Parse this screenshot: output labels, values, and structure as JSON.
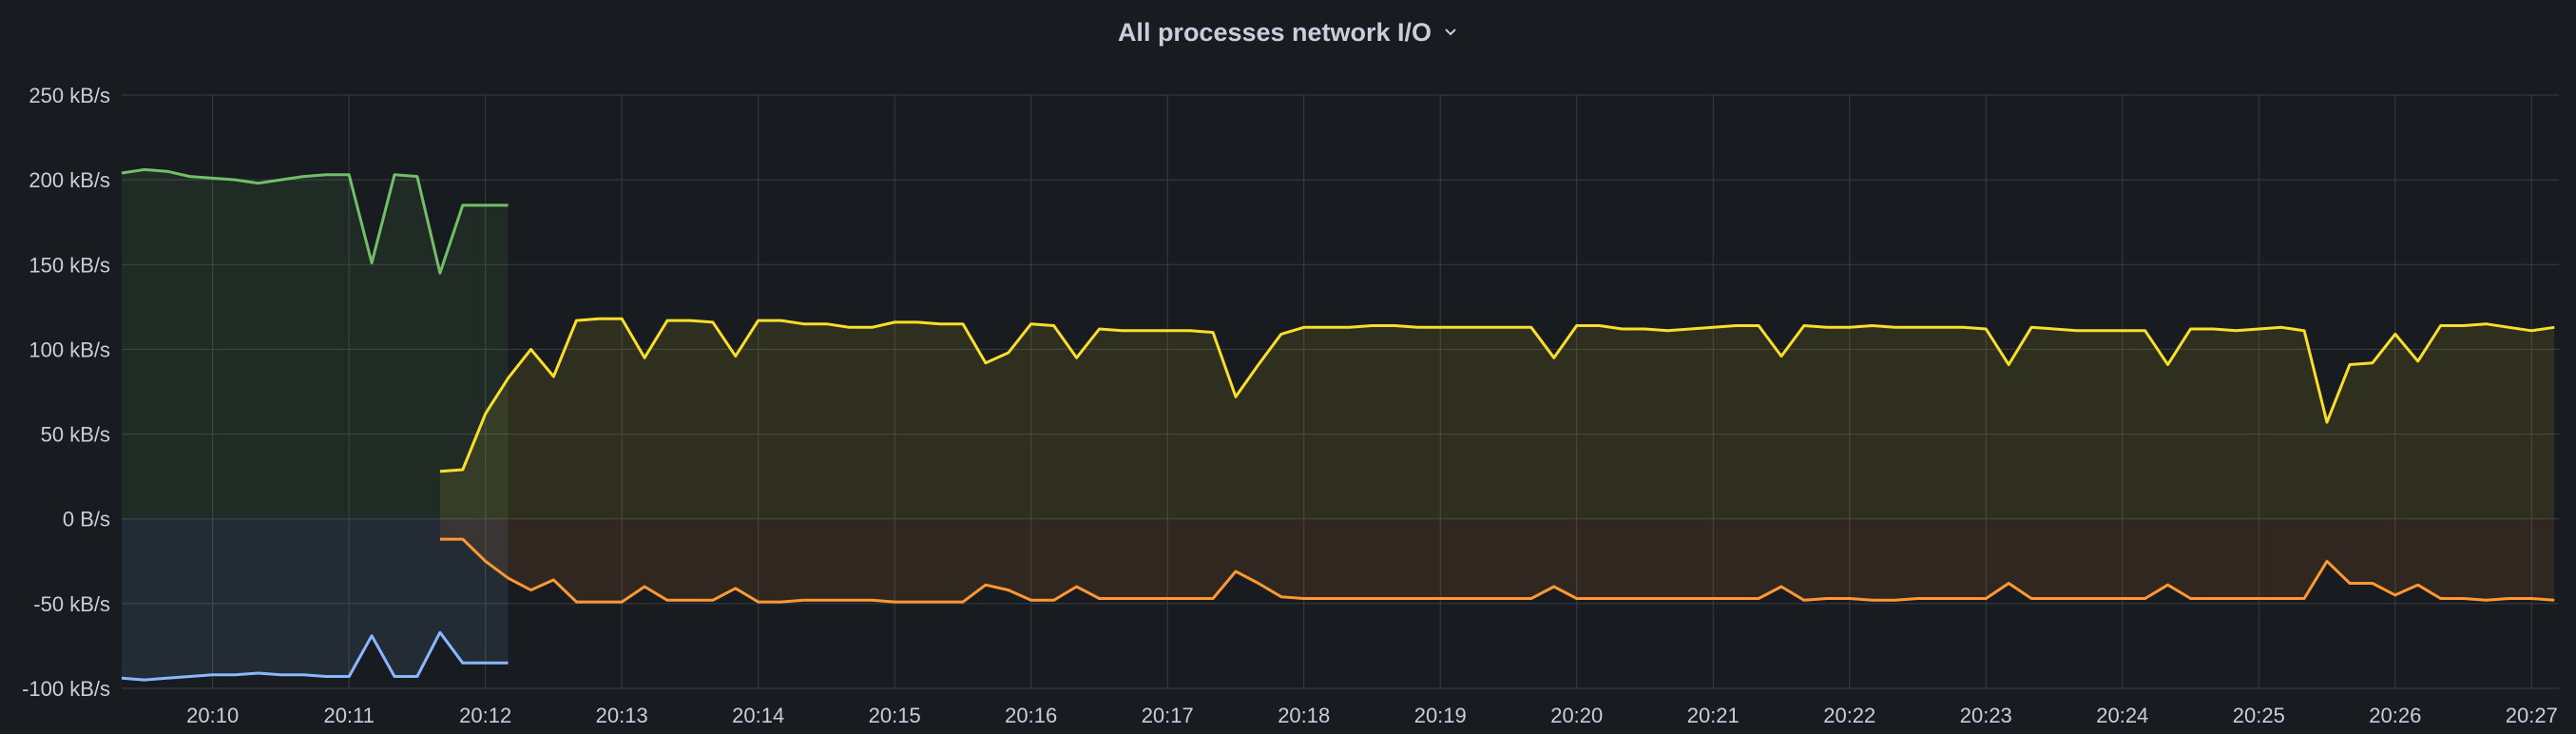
{
  "panel": {
    "title": "All processes network I/O"
  },
  "colors": {
    "background": "#181b1f",
    "grid": "#3a3d42",
    "text": "#ccccdc"
  },
  "chart_data": {
    "type": "area",
    "title": "All processes network I/O",
    "xlabel": "",
    "ylabel": "",
    "x_tick_labels": [
      "20:10",
      "20:11",
      "20:12",
      "20:13",
      "20:14",
      "20:15",
      "20:16",
      "20:17",
      "20:18",
      "20:19",
      "20:20",
      "20:21",
      "20:22",
      "20:23",
      "20:24",
      "20:25",
      "20:26",
      "20:27"
    ],
    "y_tick_labels": [
      "-100 kB/s",
      "-50 kB/s",
      "0 B/s",
      "50 kB/s",
      "100 kB/s",
      "150 kB/s",
      "200 kB/s",
      "250 kB/s"
    ],
    "y_tick_values": [
      -100,
      -50,
      0,
      50,
      100,
      150,
      200,
      250
    ],
    "xlim": [
      "20:09:20",
      "20:27:12"
    ],
    "ylim": [
      -100,
      250
    ],
    "unit": "kB/s",
    "grid": true,
    "legend": "none",
    "series": [
      {
        "color": "#73bf69",
        "x": [
          "20:09:20",
          "20:09:30",
          "20:09:40",
          "20:09:50",
          "20:10:00",
          "20:10:10",
          "20:10:20",
          "20:10:30",
          "20:10:40",
          "20:10:50",
          "20:11:00",
          "20:11:10",
          "20:11:20",
          "20:11:30",
          "20:11:40",
          "20:11:50",
          "20:12:00",
          "20:12:10"
        ],
        "values": [
          204,
          206,
          205,
          202,
          201,
          200,
          198,
          200,
          202,
          203,
          203,
          151,
          203,
          202,
          145,
          185,
          185,
          185
        ]
      },
      {
        "color": "#8ab8ff",
        "x": [
          "20:09:20",
          "20:09:30",
          "20:09:40",
          "20:09:50",
          "20:10:00",
          "20:10:10",
          "20:10:20",
          "20:10:30",
          "20:10:40",
          "20:10:50",
          "20:11:00",
          "20:11:10",
          "20:11:20",
          "20:11:30",
          "20:11:40",
          "20:11:50",
          "20:12:00",
          "20:12:10"
        ],
        "values": [
          -94,
          -95,
          -94,
          -93,
          -92,
          -92,
          -91,
          -92,
          -92,
          -93,
          -93,
          -69,
          -93,
          -93,
          -67,
          -85,
          -85,
          -85
        ]
      },
      {
        "color": "#fade2a",
        "x": [
          "20:11:40",
          "20:11:50",
          "20:12:00",
          "20:12:10",
          "20:12:20",
          "20:12:30",
          "20:12:40",
          "20:12:50",
          "20:13:00",
          "20:13:10",
          "20:13:20",
          "20:13:30",
          "20:13:40",
          "20:13:50",
          "20:14:00",
          "20:14:10",
          "20:14:20",
          "20:14:30",
          "20:14:40",
          "20:14:50",
          "20:15:00",
          "20:15:10",
          "20:15:20",
          "20:15:30",
          "20:15:40",
          "20:15:50",
          "20:16:00",
          "20:16:10",
          "20:16:20",
          "20:16:30",
          "20:16:40",
          "20:16:50",
          "20:17:00",
          "20:17:10",
          "20:17:20",
          "20:17:30",
          "20:17:40",
          "20:17:50",
          "20:18:00",
          "20:18:10",
          "20:18:20",
          "20:18:30",
          "20:18:40",
          "20:18:50",
          "20:19:00",
          "20:19:10",
          "20:19:20",
          "20:19:30",
          "20:19:40",
          "20:19:50",
          "20:20:00",
          "20:20:10",
          "20:20:20",
          "20:20:30",
          "20:20:40",
          "20:20:50",
          "20:21:00",
          "20:21:10",
          "20:21:20",
          "20:21:30",
          "20:21:40",
          "20:21:50",
          "20:22:00",
          "20:22:10",
          "20:22:20",
          "20:22:30",
          "20:22:40",
          "20:22:50",
          "20:23:00",
          "20:23:10",
          "20:23:20",
          "20:23:30",
          "20:23:40",
          "20:23:50",
          "20:24:00",
          "20:24:10",
          "20:24:20",
          "20:24:30",
          "20:24:40",
          "20:24:50",
          "20:25:00",
          "20:25:10",
          "20:25:20",
          "20:25:30",
          "20:25:40",
          "20:25:50",
          "20:26:00",
          "20:26:10",
          "20:26:20",
          "20:26:30",
          "20:26:40",
          "20:26:50",
          "20:27:00",
          "20:27:10"
        ],
        "values": [
          28,
          29,
          62,
          83,
          100,
          84,
          117,
          118,
          118,
          95,
          117,
          117,
          116,
          96,
          117,
          117,
          115,
          115,
          113,
          113,
          116,
          116,
          115,
          115,
          92,
          98,
          115,
          114,
          95,
          112,
          111,
          111,
          111,
          111,
          110,
          72,
          91,
          109,
          113,
          113,
          113,
          114,
          114,
          113,
          113,
          113,
          113,
          113,
          113,
          95,
          114,
          114,
          112,
          112,
          111,
          112,
          113,
          114,
          114,
          96,
          114,
          113,
          113,
          114,
          113,
          113,
          113,
          113,
          112,
          91,
          113,
          112,
          111,
          111,
          111,
          111,
          91,
          112,
          112,
          111,
          112,
          113,
          111,
          57,
          91,
          92,
          109,
          93,
          114,
          114,
          115,
          113,
          111,
          113
        ]
      },
      {
        "color": "#ff9830",
        "x": [
          "20:11:40",
          "20:11:50",
          "20:12:00",
          "20:12:10",
          "20:12:20",
          "20:12:30",
          "20:12:40",
          "20:12:50",
          "20:13:00",
          "20:13:10",
          "20:13:20",
          "20:13:30",
          "20:13:40",
          "20:13:50",
          "20:14:00",
          "20:14:10",
          "20:14:20",
          "20:14:30",
          "20:14:40",
          "20:14:50",
          "20:15:00",
          "20:15:10",
          "20:15:20",
          "20:15:30",
          "20:15:40",
          "20:15:50",
          "20:16:00",
          "20:16:10",
          "20:16:20",
          "20:16:30",
          "20:16:40",
          "20:16:50",
          "20:17:00",
          "20:17:10",
          "20:17:20",
          "20:17:30",
          "20:17:40",
          "20:17:50",
          "20:18:00",
          "20:18:10",
          "20:18:20",
          "20:18:30",
          "20:18:40",
          "20:18:50",
          "20:19:00",
          "20:19:10",
          "20:19:20",
          "20:19:30",
          "20:19:40",
          "20:19:50",
          "20:20:00",
          "20:20:10",
          "20:20:20",
          "20:20:30",
          "20:20:40",
          "20:20:50",
          "20:21:00",
          "20:21:10",
          "20:21:20",
          "20:21:30",
          "20:21:40",
          "20:21:50",
          "20:22:00",
          "20:22:10",
          "20:22:20",
          "20:22:30",
          "20:22:40",
          "20:22:50",
          "20:23:00",
          "20:23:10",
          "20:23:20",
          "20:23:30",
          "20:23:40",
          "20:23:50",
          "20:24:00",
          "20:24:10",
          "20:24:20",
          "20:24:30",
          "20:24:40",
          "20:24:50",
          "20:25:00",
          "20:25:10",
          "20:25:20",
          "20:25:30",
          "20:25:40",
          "20:25:50",
          "20:26:00",
          "20:26:10",
          "20:26:20",
          "20:26:30",
          "20:26:40",
          "20:26:50",
          "20:27:00",
          "20:27:10"
        ],
        "values": [
          -12,
          -12,
          -25,
          -35,
          -42,
          -36,
          -49,
          -49,
          -49,
          -40,
          -48,
          -48,
          -48,
          -41,
          -49,
          -49,
          -48,
          -48,
          -48,
          -48,
          -49,
          -49,
          -49,
          -49,
          -39,
          -42,
          -48,
          -48,
          -40,
          -47,
          -47,
          -47,
          -47,
          -47,
          -47,
          -31,
          -38,
          -46,
          -47,
          -47,
          -47,
          -47,
          -47,
          -47,
          -47,
          -47,
          -47,
          -47,
          -47,
          -40,
          -47,
          -47,
          -47,
          -47,
          -47,
          -47,
          -47,
          -47,
          -47,
          -40,
          -48,
          -47,
          -47,
          -48,
          -48,
          -47,
          -47,
          -47,
          -47,
          -38,
          -47,
          -47,
          -47,
          -47,
          -47,
          -47,
          -39,
          -47,
          -47,
          -47,
          -47,
          -47,
          -47,
          -25,
          -38,
          -38,
          -45,
          -39,
          -47,
          -47,
          -48,
          -47,
          -47,
          -48
        ]
      }
    ]
  }
}
